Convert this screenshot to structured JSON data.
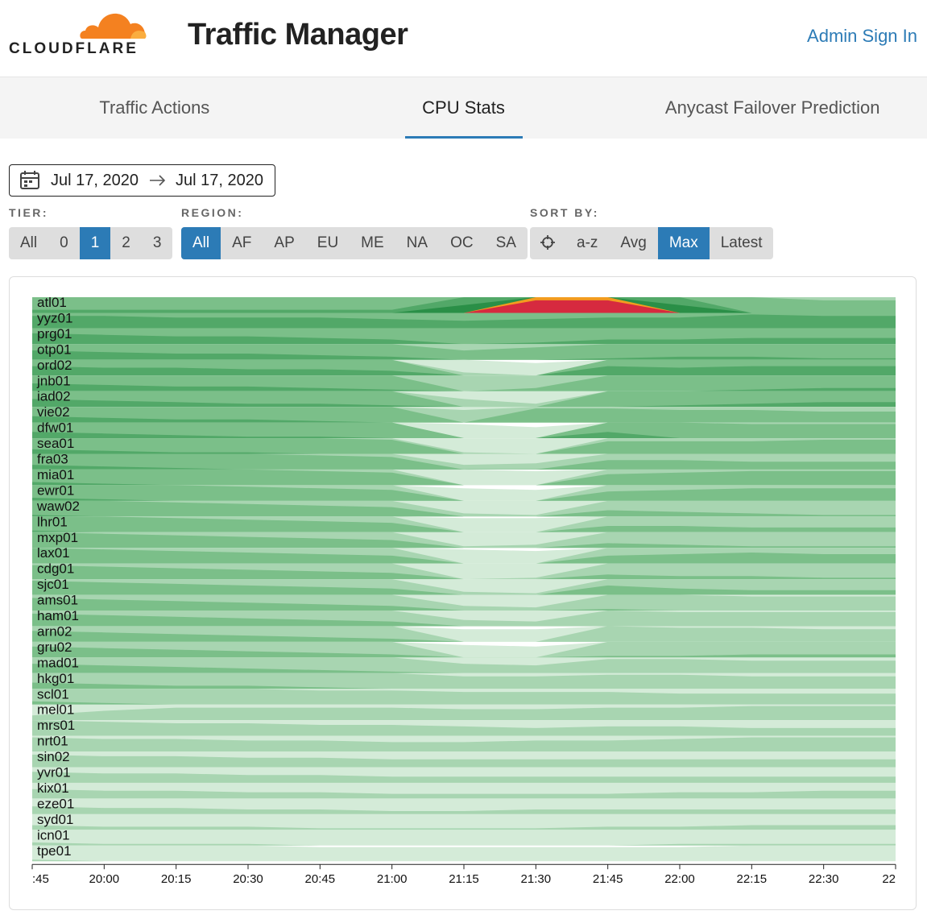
{
  "header": {
    "logo_text": "CLOUDFLARE",
    "title": "Traffic Manager",
    "sign_in": "Admin Sign In"
  },
  "tabs": {
    "items": [
      "Traffic Actions",
      "CPU Stats",
      "Anycast Failover Prediction"
    ],
    "active": 1
  },
  "date_range": {
    "start": "Jul 17, 2020",
    "end": "Jul 17, 2020"
  },
  "filters": {
    "tier": {
      "label": "TIER:",
      "options": [
        "All",
        "0",
        "1",
        "2",
        "3"
      ],
      "selected": 2
    },
    "region": {
      "label": "REGION:",
      "options": [
        "All",
        "AF",
        "AP",
        "EU",
        "ME",
        "NA",
        "OC",
        "SA"
      ],
      "selected": 0
    },
    "sort": {
      "label": "SORT BY:",
      "options": [
        "a-z",
        "Avg",
        "Max",
        "Latest"
      ],
      "selected": 2
    }
  },
  "chart_data": {
    "type": "horizon",
    "x": [
      ":45",
      "20:00",
      "20:15",
      "20:30",
      "20:45",
      "21:00",
      "21:15",
      "21:30",
      "21:45",
      "22:00",
      "22:15",
      "22:30",
      "22"
    ],
    "band_colors": [
      "#d4ebd8",
      "#a8d5b1",
      "#7bbf89",
      "#52a868",
      "#2a8f47",
      "#f39c1f",
      "#d62a3f"
    ],
    "series": [
      {
        "name": "atl01",
        "values": [
          3.2,
          3.2,
          3.2,
          3.2,
          3.2,
          3.2,
          4.5,
          6.8,
          6.8,
          4.5,
          3.0,
          2.8,
          2.8
        ]
      },
      {
        "name": "yyz01",
        "values": [
          3.8,
          3.8,
          3.7,
          3.7,
          3.7,
          3.6,
          3.5,
          3.6,
          3.7,
          3.7,
          3.9,
          3.8,
          3.8
        ]
      },
      {
        "name": "prg01",
        "values": [
          3.7,
          3.6,
          3.5,
          3.5,
          3.4,
          3.3,
          3.0,
          3.1,
          3.3,
          3.3,
          3.4,
          3.4,
          3.4
        ]
      },
      {
        "name": "otp01",
        "values": [
          3.6,
          3.5,
          3.4,
          3.4,
          3.3,
          3.2,
          2.6,
          2.8,
          3.1,
          3.2,
          3.2,
          3.1,
          3.1
        ]
      },
      {
        "name": "ord02",
        "values": [
          3.6,
          3.5,
          3.5,
          3.4,
          3.4,
          3.3,
          1.2,
          0.8,
          3.6,
          3.5,
          3.6,
          3.6,
          3.6
        ]
      },
      {
        "name": "jnb01",
        "values": [
          3.5,
          3.4,
          3.3,
          3.3,
          3.2,
          3.1,
          2.0,
          2.2,
          3.0,
          3.0,
          3.1,
          3.2,
          3.2
        ]
      },
      {
        "name": "iad02",
        "values": [
          3.5,
          3.4,
          3.3,
          3.2,
          3.2,
          3.1,
          1.5,
          1.2,
          3.0,
          3.1,
          3.2,
          3.3,
          3.3
        ]
      },
      {
        "name": "vie02",
        "values": [
          3.4,
          3.3,
          3.2,
          3.2,
          3.1,
          3.0,
          1.8,
          2.9,
          2.9,
          2.8,
          2.8,
          2.7,
          2.7
        ]
      },
      {
        "name": "dfw01",
        "values": [
          3.4,
          3.3,
          3.2,
          3.1,
          3.1,
          3.0,
          0.9,
          0.7,
          3.4,
          3.0,
          2.9,
          2.9,
          2.9
        ]
      },
      {
        "name": "sea01",
        "values": [
          3.3,
          3.2,
          3.1,
          3.1,
          3.0,
          2.9,
          1.1,
          1.0,
          2.8,
          2.8,
          2.8,
          2.9,
          2.9
        ]
      },
      {
        "name": "fra03",
        "values": [
          3.3,
          3.2,
          3.1,
          3.0,
          2.9,
          2.8,
          1.3,
          1.4,
          2.6,
          2.6,
          2.5,
          2.5,
          2.5
        ]
      },
      {
        "name": "mia01",
        "values": [
          3.2,
          3.1,
          3.0,
          3.0,
          2.9,
          2.8,
          1.0,
          0.9,
          2.7,
          2.8,
          2.9,
          2.9,
          2.9
        ]
      },
      {
        "name": "ewr01",
        "values": [
          3.2,
          3.1,
          3.0,
          2.9,
          2.8,
          2.7,
          0.8,
          0.7,
          2.6,
          2.7,
          2.8,
          2.8,
          2.8
        ]
      },
      {
        "name": "waw02",
        "values": [
          3.1,
          3.0,
          2.9,
          2.8,
          2.7,
          2.6,
          1.2,
          1.1,
          2.4,
          2.3,
          2.2,
          2.1,
          2.1
        ]
      },
      {
        "name": "lhr01",
        "values": [
          3.1,
          3.0,
          2.9,
          2.8,
          2.7,
          2.6,
          0.9,
          0.9,
          2.4,
          2.4,
          2.3,
          2.3,
          2.3
        ]
      },
      {
        "name": "mxp01",
        "values": [
          3.0,
          2.9,
          2.8,
          2.7,
          2.6,
          2.5,
          1.1,
          1.2,
          2.3,
          2.2,
          2.1,
          2.1,
          2.1
        ]
      },
      {
        "name": "lax01",
        "values": [
          3.0,
          2.9,
          2.8,
          2.7,
          2.6,
          2.5,
          0.9,
          0.8,
          2.5,
          2.6,
          2.7,
          2.6,
          2.6
        ]
      },
      {
        "name": "cdg01",
        "values": [
          2.9,
          2.8,
          2.7,
          2.6,
          2.5,
          2.4,
          1.0,
          1.1,
          2.3,
          2.2,
          2.2,
          2.1,
          2.1
        ]
      },
      {
        "name": "sjc01",
        "values": [
          2.9,
          2.8,
          2.7,
          2.6,
          2.5,
          2.4,
          1.2,
          1.1,
          2.6,
          2.4,
          2.3,
          2.3,
          2.3
        ]
      },
      {
        "name": "ams01",
        "values": [
          2.8,
          2.7,
          2.6,
          2.5,
          2.4,
          2.3,
          1.3,
          1.2,
          2.1,
          2.0,
          1.9,
          1.9,
          1.9
        ]
      },
      {
        "name": "ham01",
        "values": [
          2.8,
          2.7,
          2.6,
          2.5,
          2.4,
          2.3,
          1.4,
          1.3,
          2.0,
          1.9,
          1.9,
          1.9,
          1.9
        ]
      },
      {
        "name": "arn02",
        "values": [
          2.7,
          2.6,
          2.5,
          2.4,
          2.3,
          2.2,
          0.8,
          0.8,
          2.0,
          1.9,
          1.9,
          1.8,
          1.8
        ]
      },
      {
        "name": "gru02",
        "values": [
          2.7,
          2.6,
          2.5,
          2.4,
          2.3,
          2.2,
          0.8,
          0.7,
          2.1,
          2.1,
          2.2,
          2.2,
          2.2
        ]
      },
      {
        "name": "mad01",
        "values": [
          2.6,
          2.5,
          2.4,
          2.3,
          2.2,
          2.1,
          1.6,
          1.5,
          1.9,
          1.9,
          1.8,
          1.8,
          1.8
        ]
      },
      {
        "name": "hkg01",
        "values": [
          2.4,
          2.3,
          2.2,
          2.2,
          2.1,
          2.0,
          1.8,
          1.8,
          1.9,
          1.9,
          1.8,
          1.8,
          1.8
        ]
      },
      {
        "name": "scl01",
        "values": [
          2.2,
          2.1,
          2.0,
          2.0,
          1.9,
          1.9,
          1.8,
          1.8,
          1.8,
          1.7,
          1.7,
          1.7,
          1.7
        ]
      },
      {
        "name": "mel01",
        "values": [
          1.3,
          1.6,
          1.8,
          1.8,
          1.8,
          1.8,
          1.7,
          1.7,
          1.8,
          1.8,
          1.9,
          1.9,
          1.9
        ]
      },
      {
        "name": "mrs01",
        "values": [
          2.0,
          1.9,
          1.8,
          1.8,
          1.7,
          1.7,
          1.6,
          1.5,
          1.6,
          1.6,
          1.5,
          1.5,
          1.5
        ]
      },
      {
        "name": "nrt01",
        "values": [
          1.9,
          1.8,
          1.8,
          1.7,
          1.7,
          1.6,
          1.6,
          1.7,
          1.7,
          1.8,
          1.9,
          1.9,
          1.9
        ]
      },
      {
        "name": "sin02",
        "values": [
          1.8,
          1.7,
          1.7,
          1.6,
          1.6,
          1.5,
          1.5,
          1.5,
          1.5,
          1.5,
          1.5,
          1.5,
          1.5
        ]
      },
      {
        "name": "yvr01",
        "values": [
          1.7,
          1.6,
          1.6,
          1.5,
          1.5,
          1.4,
          1.4,
          1.4,
          1.4,
          1.4,
          1.4,
          1.4,
          1.4
        ]
      },
      {
        "name": "kix01",
        "values": [
          1.6,
          1.5,
          1.5,
          1.4,
          1.4,
          1.3,
          1.3,
          1.3,
          1.3,
          1.4,
          1.4,
          1.5,
          1.5
        ]
      },
      {
        "name": "eze01",
        "values": [
          1.5,
          1.4,
          1.4,
          1.3,
          1.3,
          1.2,
          1.2,
          1.3,
          1.3,
          1.3,
          1.3,
          1.3,
          1.3
        ]
      },
      {
        "name": "syd01",
        "values": [
          1.3,
          1.2,
          1.2,
          1.2,
          1.1,
          1.1,
          1.1,
          1.1,
          1.2,
          1.2,
          1.3,
          1.3,
          1.3
        ]
      },
      {
        "name": "icn01",
        "values": [
          1.2,
          1.1,
          1.1,
          1.1,
          1.0,
          1.0,
          1.0,
          1.0,
          1.0,
          1.1,
          1.1,
          1.1,
          1.1
        ]
      },
      {
        "name": "tpe01",
        "values": [
          1.1,
          1.0,
          1.0,
          1.0,
          0.9,
          0.9,
          0.9,
          0.9,
          0.9,
          0.9,
          1.0,
          1.0,
          1.0
        ]
      }
    ]
  }
}
